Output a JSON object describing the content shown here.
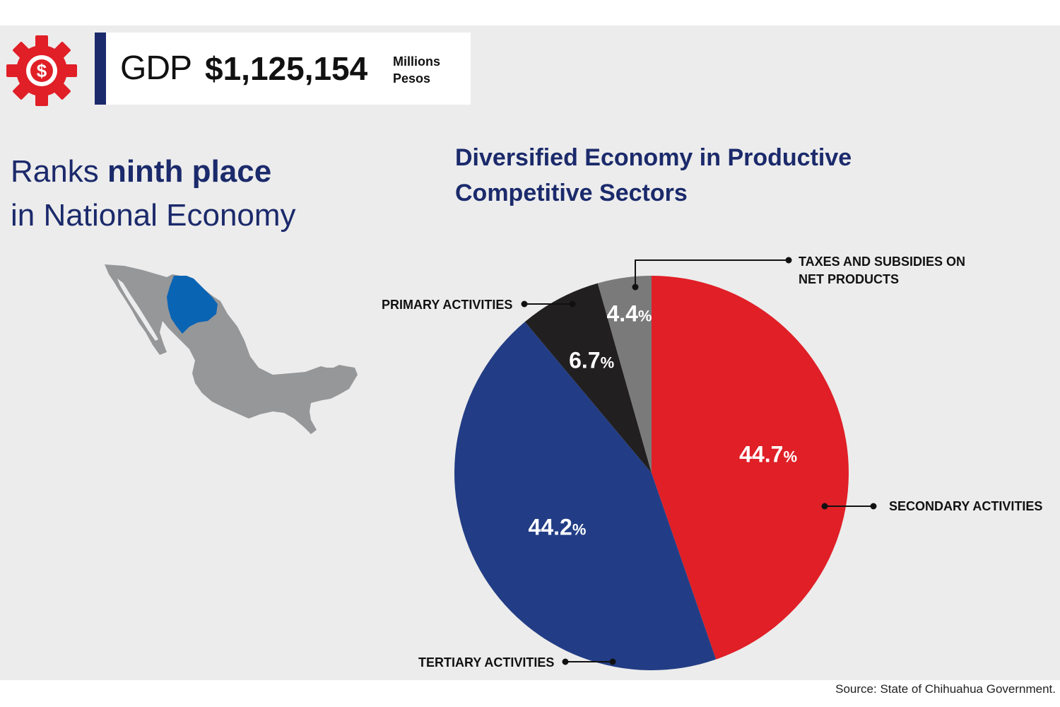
{
  "header": {
    "gdp_label": "GDP",
    "gdp_value": "$1,125,154",
    "gdp_unit_line1": "Millions",
    "gdp_unit_line2": "Pesos",
    "icon": "dollar-gear-icon"
  },
  "rank": {
    "prefix": "Ranks ",
    "highlight": "ninth place",
    "line2": "in National Economy"
  },
  "map": {
    "icon": "mexico-map-chihuahua-highlight",
    "highlight_color": "#0a64b4",
    "base_color": "#969799"
  },
  "chart_data": {
    "type": "pie",
    "title_line1": "Diversified Economy in Productive",
    "title_line2": "Competitive Sectors",
    "start_angle_deg": 0,
    "direction": "clockwise",
    "slices": [
      {
        "name": "SECONDARY ACTIVITIES",
        "value": 44.7,
        "color": "#e01f27",
        "label_num": "44.7",
        "label_unit": "%"
      },
      {
        "name": "TERTIARY ACTIVITIES",
        "value": 44.2,
        "color": "#223d85",
        "label_num": "44.2",
        "label_unit": "%"
      },
      {
        "name": "PRIMARY ACTIVITIES",
        "value": 6.7,
        "color": "#211f20",
        "label_num": "6.7",
        "label_unit": "%"
      },
      {
        "name_line1": "TAXES AND SUBSIDIES ON",
        "name_line2": "NET PRODUCTS",
        "value": 4.4,
        "color": "#7a7a7a",
        "label_num": "4.4",
        "label_unit": "%"
      }
    ]
  },
  "source": "Source: State of Chihuahua Government."
}
